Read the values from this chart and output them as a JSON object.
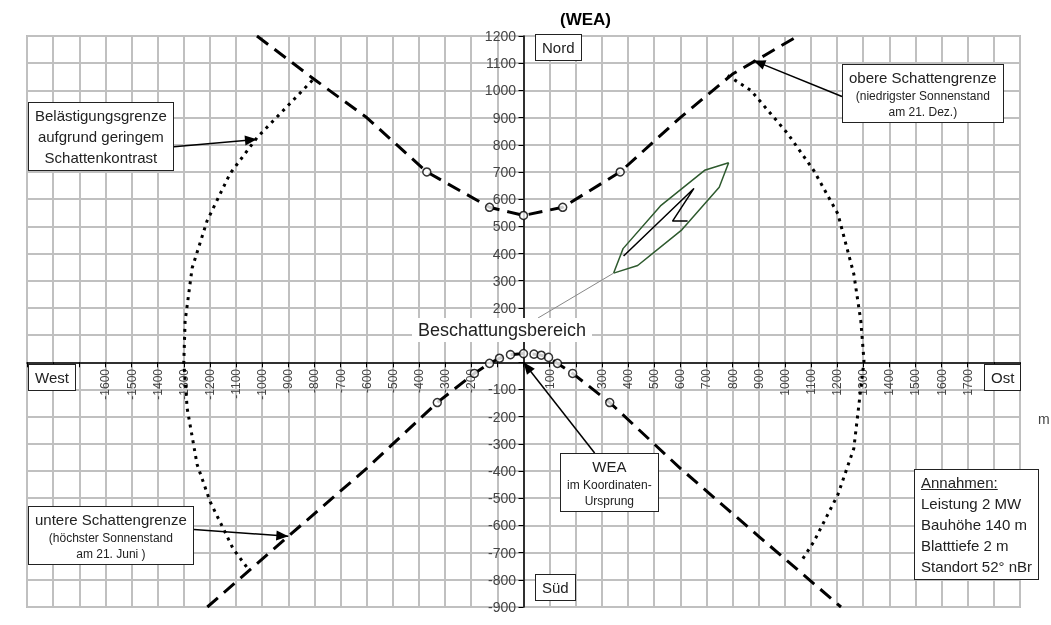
{
  "chart_data": {
    "type": "line",
    "title": "(WEA)",
    "xlabel": "m",
    "xlim": [
      -1900,
      1900
    ],
    "xticks": [
      {
        "value": -1900,
        "label": null
      },
      {
        "value": -1800,
        "label": null
      },
      {
        "value": -1700,
        "label": null
      },
      -1600,
      -1500,
      -1400,
      -1300,
      -1200,
      -1100,
      -1000,
      -900,
      -800,
      -700,
      -600,
      -500,
      -400,
      -300,
      -200,
      {
        "value": -100,
        "label": null
      },
      {
        "value": 0,
        "label": null
      },
      100,
      {
        "value": 200,
        "label": null
      },
      300,
      400,
      500,
      600,
      700,
      800,
      900,
      1000,
      1100,
      1200,
      1300,
      1400,
      1500,
      1600,
      1700,
      {
        "value": 1800,
        "label": null
      },
      {
        "value": 1900,
        "label": null
      }
    ],
    "ylim": [
      -900,
      1200
    ],
    "yticks": [
      -900,
      -800,
      -700,
      -600,
      -500,
      -400,
      -300,
      -200,
      -100,
      {
        "value": 0,
        "label": null
      },
      {
        "value": 100,
        "label": null
      },
      200,
      300,
      400,
      500,
      600,
      700,
      800,
      900,
      1000,
      1100,
      1200
    ],
    "grid": true,
    "series": [
      {
        "color": "#000000",
        "line_style": "dashed",
        "marker": "none",
        "x": [
          -1020,
          -800,
          -600,
          -370,
          -130,
          0,
          150,
          370,
          600,
          800,
          1050
        ],
        "values": [
          1200,
          1040,
          900,
          700,
          570,
          540,
          570,
          700,
          900,
          1060,
          1200
        ]
      },
      {
        "color": "#000000",
        "line_style": "dashed",
        "marker": "none",
        "x": [
          -1210,
          -900,
          -600,
          -330,
          -188,
          -130,
          -92,
          -50,
          0,
          40,
          68,
          96,
          130,
          188,
          330,
          600,
          900,
          1215
        ],
        "values": [
          -900,
          -640,
          -390,
          -148,
          -41,
          -4,
          15,
          28,
          32,
          30,
          26,
          18,
          -4,
          -41,
          -148,
          -390,
          -640,
          -900
        ]
      },
      {
        "color": "#000000",
        "line_style": "dotted",
        "marker": "none",
        "x": [
          -808,
          -1019,
          -1123,
          -1211,
          -1268,
          -1295,
          -1300,
          -1287,
          -1249,
          -1199,
          -1111,
          -1054
        ],
        "values": [
          1037,
          827,
          694,
          520,
          347,
          151,
          0,
          -170,
          -376,
          -513,
          -686,
          -760
        ]
      },
      {
        "color": "#000000",
        "line_style": "dotted",
        "marker": "none",
        "x": [
          781,
          870,
          1011,
          1111,
          1203,
          1264,
          1291,
          1303,
          1264,
          1203,
          1111,
          1061
        ],
        "values": [
          1055,
          1000,
          841,
          705,
          546,
          325,
          151,
          4,
          -317,
          -487,
          -660,
          -734
        ]
      },
      {
        "color": "#2e5a2e",
        "line_style": "solid",
        "marker": "none",
        "x": [
          345,
          381,
          524,
          693,
          785
        ],
        "values": [
          328,
          418,
          575,
          706,
          734
        ]
      },
      {
        "color": "#2e5a2e",
        "line_style": "solid",
        "marker": "none",
        "x": [
          345,
          437,
          606,
          749,
          785
        ],
        "values": [
          328,
          356,
          487,
          644,
          734
        ]
      },
      {
        "color": "#000000",
        "line_style": "solid",
        "marker": "none",
        "x": [
          383,
          651,
          571,
          628
        ],
        "values": [
          391,
          638,
          520,
          520
        ]
      },
      {
        "type": "scatter",
        "color": "#000000",
        "marker": "circle",
        "x": [
          -370,
          -130,
          0,
          150,
          370,
          -330,
          -188,
          -130,
          -92,
          -50,
          0,
          40,
          68,
          96,
          130,
          188,
          330
        ],
        "values": [
          700,
          570,
          540,
          570,
          700,
          -148,
          -41,
          -4,
          15,
          28,
          32,
          30,
          26,
          18,
          -4,
          -41,
          -148
        ]
      }
    ],
    "annotations": [
      {
        "text": "Belästigungsgrenze\naufgrund geringem\nSchattenkontrast",
        "x": -1020,
        "y": 820
      },
      {
        "text": "obere Schattengrenze\n(niedrigster Sonnenstand\nam 21. Dez.)",
        "x": 880,
        "y": 1110
      },
      {
        "text": "untere Schattengrenze\n(höchster Sonnenstand\nam 21. Juni )",
        "x": -900,
        "y": -640
      },
      {
        "text": "WEA\nim Koordinaten-\nUrsprung",
        "x": 0,
        "y": 0
      },
      {
        "text": "Beschattungsbereich",
        "x": 345,
        "y": 328
      },
      "Nord",
      "Süd",
      "West",
      "Ost",
      "Annahmen:\nLeistung 2 MW\nBauhöhe 140 m\nBlatttiefe 2 m\nStandort 52° nBr"
    ]
  }
}
